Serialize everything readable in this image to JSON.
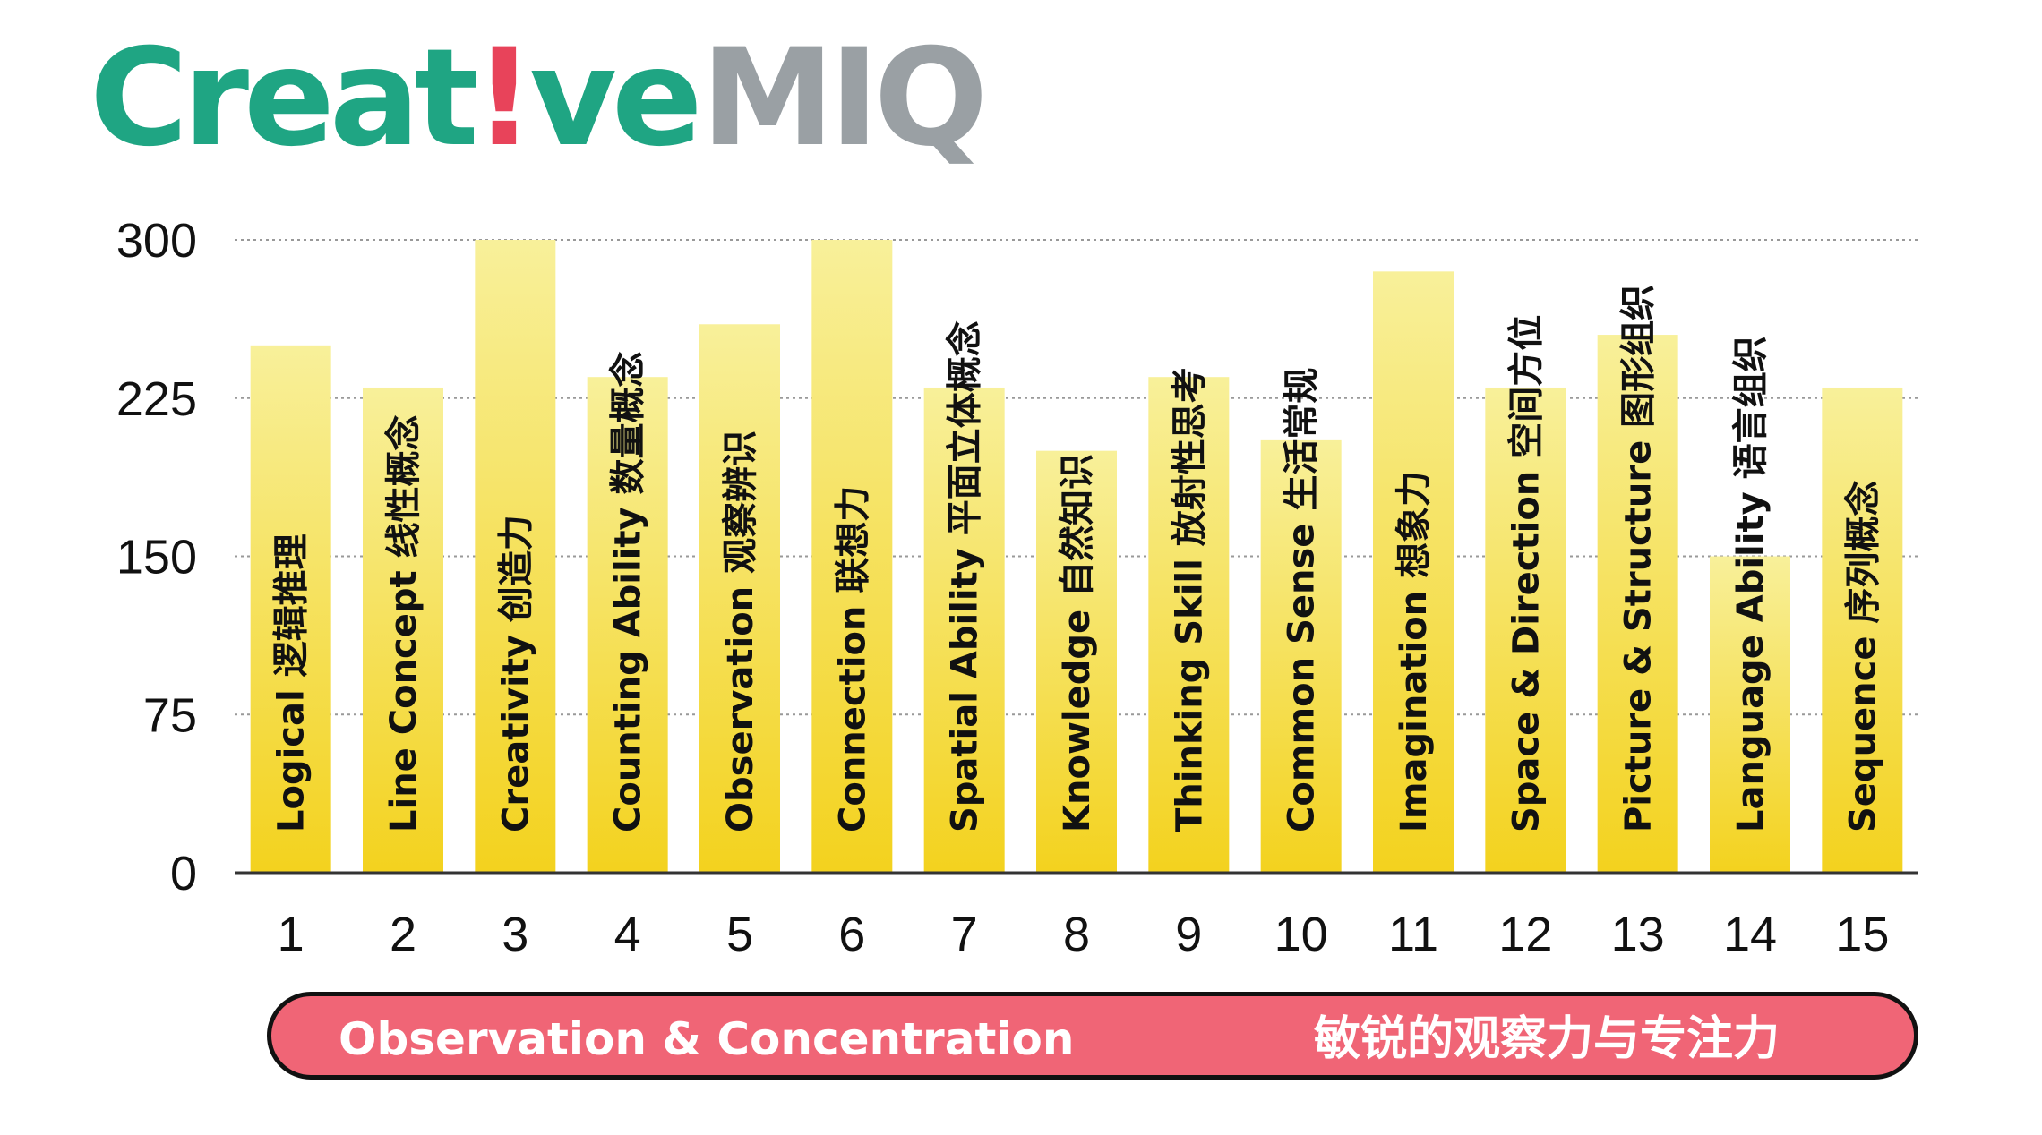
{
  "logo": {
    "part1": "Creat",
    "part2": "!",
    "part3": "ve",
    "part4": "MIQ"
  },
  "banner": {
    "english": "Observation & Concentration",
    "chinese": "敏锐的观察力与专注力"
  },
  "colors": {
    "bar_top": "#f8f09a",
    "bar_bottom": "#f3d21e",
    "logo_green": "#1fa583",
    "logo_red": "#e8435a",
    "logo_gray": "#9aa0a4",
    "banner_fill": "#f06576"
  },
  "chart_data": {
    "type": "bar",
    "categories": [
      "1",
      "2",
      "3",
      "4",
      "5",
      "6",
      "7",
      "8",
      "9",
      "10",
      "11",
      "12",
      "13",
      "14",
      "15"
    ],
    "bar_labels": [
      "Logical 逻辑推理",
      "Line Concept 线性概念",
      "Creativity 创造力",
      "Counting Ability 数量概念",
      "Observation 观察辨识",
      "Connection 联想力",
      "Spatial Ability 平面立体概念",
      "Knowledge 自然知识",
      "Thinking Skill 放射性思考",
      "Common Sense 生活常规",
      "Imagination 想象力",
      "Space & Direction 空间方位",
      "Picture & Structure 图形组织",
      "Language Ability 语言组织",
      "Sequence 序列概念"
    ],
    "values": [
      250,
      230,
      300,
      235,
      260,
      300,
      230,
      200,
      235,
      205,
      285,
      230,
      255,
      150,
      230
    ],
    "yticks": [
      "0",
      "75",
      "150",
      "225",
      "300"
    ],
    "ylim": [
      0,
      300
    ],
    "grid": true
  }
}
